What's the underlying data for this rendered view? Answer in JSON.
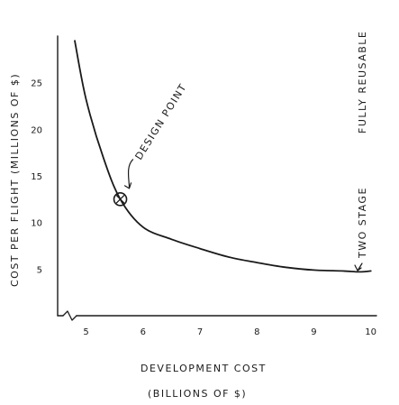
{
  "chart_data": {
    "type": "line",
    "title": "",
    "xlabel_line1": "DEVELOPMENT COST",
    "xlabel_line2": "(BILLIONS OF $)",
    "ylabel": "COST PER FLIGHT (MILLIONS OF $)",
    "x_ticks": [
      "5",
      "6",
      "7",
      "8",
      "9",
      "10"
    ],
    "y_ticks": [
      "5",
      "10",
      "15",
      "20",
      "25"
    ],
    "xlim": [
      4.5,
      10.1
    ],
    "ylim": [
      0,
      30
    ],
    "grid": false,
    "series": [
      {
        "x": [
          4.8,
          5.0,
          5.3,
          5.6,
          6.0,
          6.5,
          7.0,
          7.5,
          8.0,
          8.5,
          9.0,
          9.5,
          9.8,
          10.0
        ],
        "y": [
          29.5,
          23.2,
          17.0,
          12.5,
          9.5,
          8.2,
          7.2,
          6.3,
          5.7,
          5.2,
          4.9,
          4.8,
          4.7,
          4.8
        ]
      }
    ],
    "annotations": {
      "design_point": {
        "label": "DESIGN POINT",
        "x": 5.6,
        "y": 12.5
      },
      "endpoint_top": "FULLY REUSABLE",
      "endpoint_bottom": "TWO STAGE"
    }
  }
}
